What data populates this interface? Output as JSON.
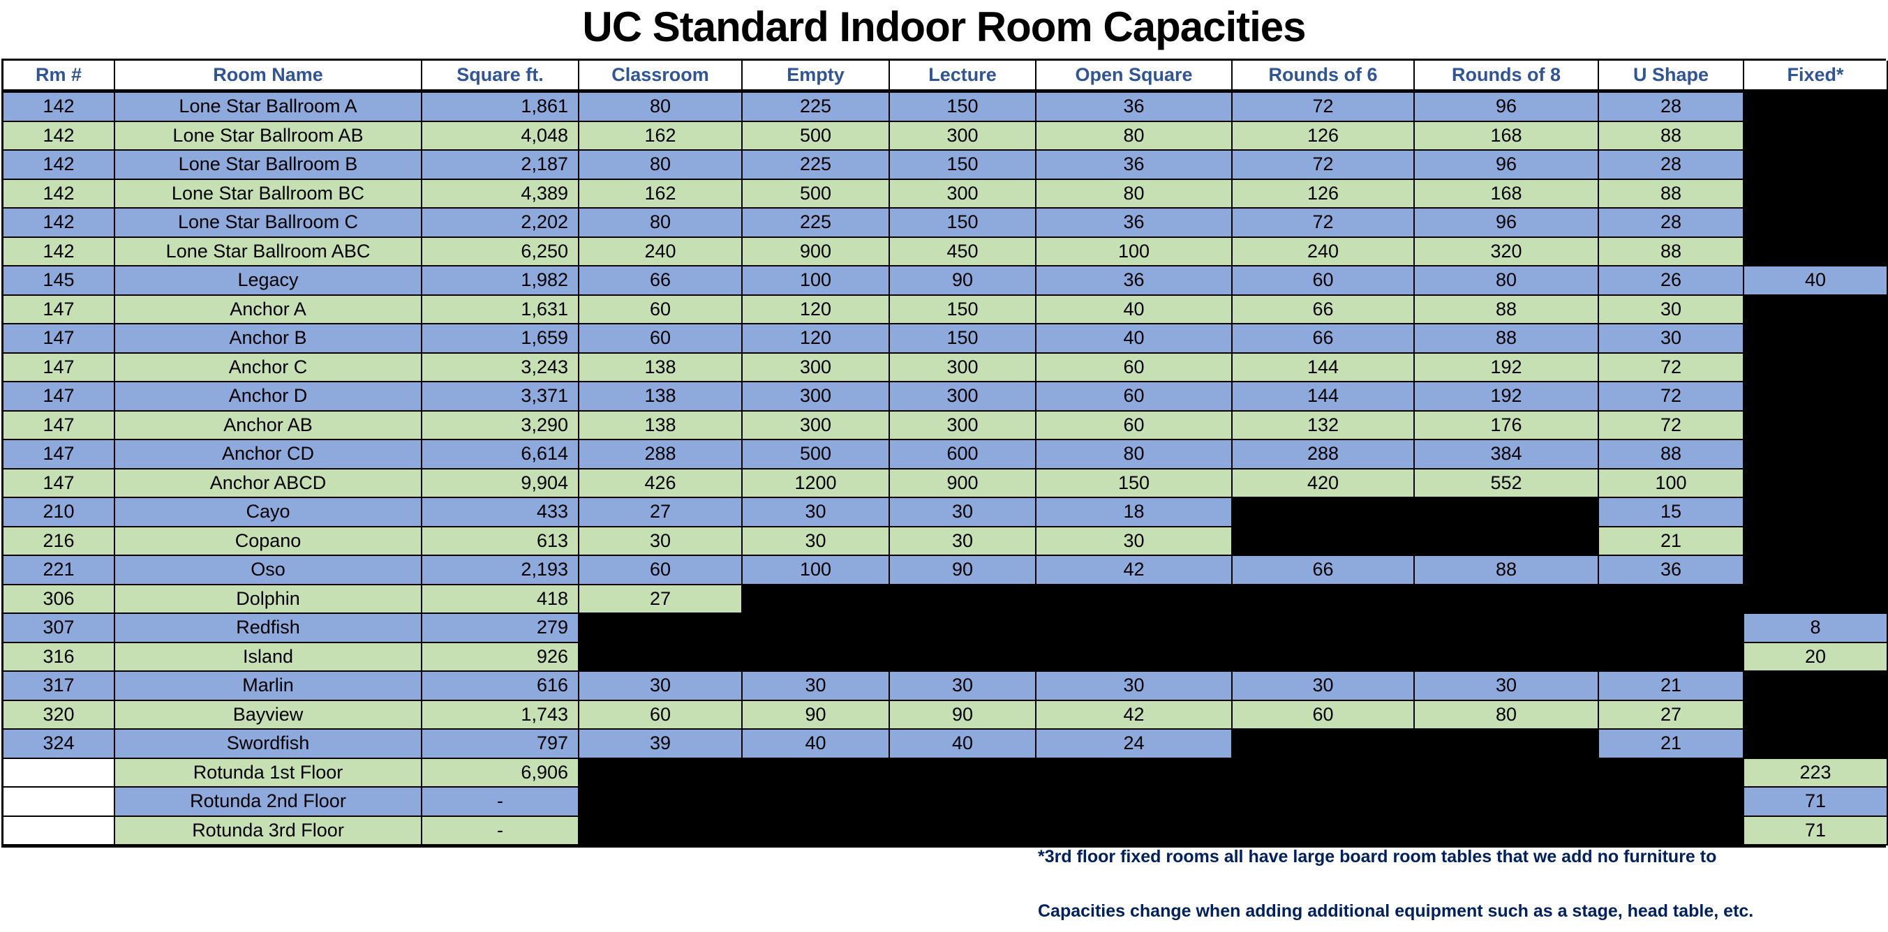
{
  "title": "UC Standard Indoor Room Capacities",
  "colors": {
    "row_odd": "#8EA9DB",
    "row_even": "#C6E0B4",
    "header_text": "#2F5597",
    "note_text": "#002060",
    "unavailable": "#000000"
  },
  "columns": [
    "Rm #",
    "Room Name",
    "Square ft.",
    "Classroom",
    "Empty",
    "Lecture",
    "Open Square",
    "Rounds of 6",
    "Rounds of 8",
    "U Shape",
    "Fixed*"
  ],
  "rows": [
    [
      "142",
      "Lone Star Ballroom A",
      "1,861",
      "80",
      "225",
      "150",
      "36",
      "72",
      "96",
      "28",
      null
    ],
    [
      "142",
      "Lone Star Ballroom AB",
      "4,048",
      "162",
      "500",
      "300",
      "80",
      "126",
      "168",
      "88",
      null
    ],
    [
      "142",
      "Lone Star Ballroom B",
      "2,187",
      "80",
      "225",
      "150",
      "36",
      "72",
      "96",
      "28",
      null
    ],
    [
      "142",
      "Lone Star Ballroom BC",
      "4,389",
      "162",
      "500",
      "300",
      "80",
      "126",
      "168",
      "88",
      null
    ],
    [
      "142",
      "Lone Star Ballroom C",
      "2,202",
      "80",
      "225",
      "150",
      "36",
      "72",
      "96",
      "28",
      null
    ],
    [
      "142",
      "Lone Star Ballroom ABC",
      "6,250",
      "240",
      "900",
      "450",
      "100",
      "240",
      "320",
      "88",
      null
    ],
    [
      "145",
      "Legacy",
      "1,982",
      "66",
      "100",
      "90",
      "36",
      "60",
      "80",
      "26",
      "40"
    ],
    [
      "147",
      "Anchor A",
      "1,631",
      "60",
      "120",
      "150",
      "40",
      "66",
      "88",
      "30",
      null
    ],
    [
      "147",
      "Anchor B",
      "1,659",
      "60",
      "120",
      "150",
      "40",
      "66",
      "88",
      "30",
      null
    ],
    [
      "147",
      "Anchor C",
      "3,243",
      "138",
      "300",
      "300",
      "60",
      "144",
      "192",
      "72",
      null
    ],
    [
      "147",
      "Anchor D",
      "3,371",
      "138",
      "300",
      "300",
      "60",
      "144",
      "192",
      "72",
      null
    ],
    [
      "147",
      "Anchor AB",
      "3,290",
      "138",
      "300",
      "300",
      "60",
      "132",
      "176",
      "72",
      null
    ],
    [
      "147",
      "Anchor CD",
      "6,614",
      "288",
      "500",
      "600",
      "80",
      "288",
      "384",
      "88",
      null
    ],
    [
      "147",
      "Anchor ABCD",
      "9,904",
      "426",
      "1200",
      "900",
      "150",
      "420",
      "552",
      "100",
      null
    ],
    [
      "210",
      "Cayo",
      "433",
      "27",
      "30",
      "30",
      "18",
      null,
      null,
      "15",
      null
    ],
    [
      "216",
      "Copano",
      "613",
      "30",
      "30",
      "30",
      "30",
      null,
      null,
      "21",
      null
    ],
    [
      "221",
      "Oso",
      "2,193",
      "60",
      "100",
      "90",
      "42",
      "66",
      "88",
      "36",
      null
    ],
    [
      "306",
      "Dolphin",
      "418",
      "27",
      null,
      null,
      null,
      null,
      null,
      null,
      null
    ],
    [
      "307",
      "Redfish",
      "279",
      null,
      null,
      null,
      null,
      null,
      null,
      null,
      "8"
    ],
    [
      "316",
      "Island",
      "926",
      null,
      null,
      null,
      null,
      null,
      null,
      null,
      "20"
    ],
    [
      "317",
      "Marlin",
      "616",
      "30",
      "30",
      "30",
      "30",
      "30",
      "30",
      "21",
      null
    ],
    [
      "320",
      "Bayview",
      "1,743",
      "60",
      "90",
      "90",
      "42",
      "60",
      "80",
      "27",
      null
    ],
    [
      "324",
      "Swordfish",
      "797",
      "39",
      "40",
      "40",
      "24",
      null,
      null,
      "21",
      null
    ],
    [
      "",
      "Rotunda 1st Floor",
      "6,906",
      null,
      null,
      null,
      null,
      null,
      null,
      null,
      "223"
    ],
    [
      "",
      "Rotunda 2nd Floor",
      "-",
      null,
      null,
      null,
      null,
      null,
      null,
      null,
      "71"
    ],
    [
      "",
      "Rotunda 3rd Floor",
      "-",
      null,
      null,
      null,
      null,
      null,
      null,
      null,
      "71"
    ]
  ],
  "notes": [
    "*3rd floor fixed rooms all have large board room tables that we add no furniture to",
    "Capacities change when adding additional equipment such as a stage, head table, etc."
  ]
}
